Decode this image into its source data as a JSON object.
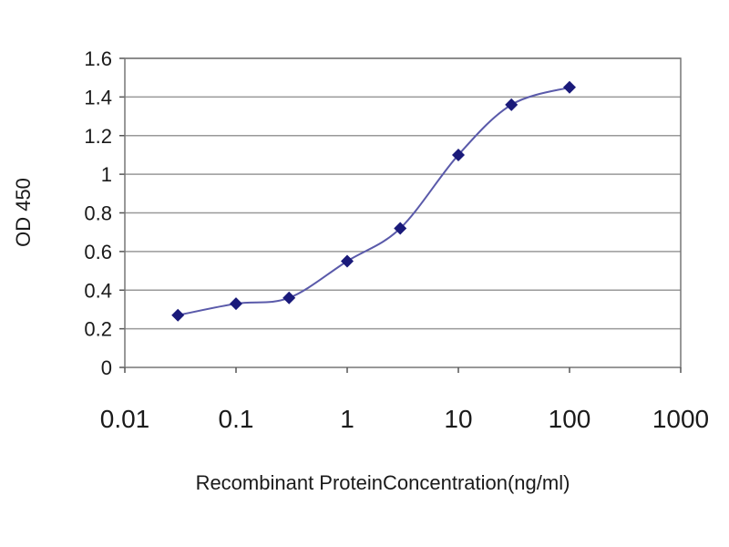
{
  "chart_data": {
    "type": "line",
    "title": "",
    "xlabel": "Recombinant ProteinConcentration(ng/ml)",
    "ylabel": "OD 450",
    "x_scale": "log",
    "xlim": [
      0.01,
      1000
    ],
    "ylim": [
      0,
      1.6
    ],
    "grid": "horizontal",
    "x_ticks": [
      "0.01",
      "0.1",
      "1",
      "10",
      "100",
      "1000"
    ],
    "y_ticks": [
      "0",
      "0.2",
      "0.4",
      "0.6",
      "0.8",
      "1",
      "1.2",
      "1.4",
      "1.6"
    ],
    "series": [
      {
        "x": [
          0.03,
          0.1,
          0.3,
          1,
          3,
          10,
          30,
          100
        ],
        "y": [
          0.27,
          0.33,
          0.36,
          0.55,
          0.72,
          1.1,
          1.36,
          1.45
        ]
      }
    ],
    "colors": {
      "line": "#5a5aaa",
      "marker": "#1a1a7a",
      "grid": "#999999",
      "plot_background": "#ffffff"
    }
  }
}
